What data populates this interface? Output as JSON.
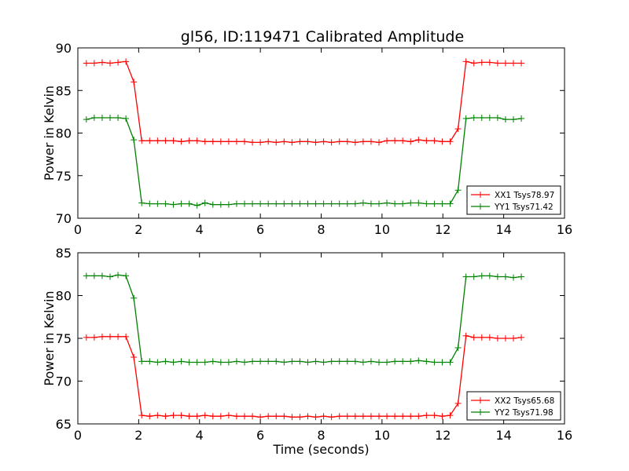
{
  "figure_title": "gl56, ID:119471 Calibrated Amplitude",
  "chart_data": [
    {
      "type": "line",
      "title": "gl56, ID:119471 Calibrated Amplitude",
      "xlabel": "",
      "ylabel": "Power in Kelvin",
      "xlim": [
        0,
        16
      ],
      "ylim": [
        70,
        90
      ],
      "xticks": [
        0,
        2,
        4,
        6,
        8,
        10,
        12,
        14,
        16
      ],
      "yticks": [
        70,
        75,
        80,
        85,
        90
      ],
      "grid": false,
      "legend_position": "bottom-right",
      "x": [
        0.28,
        0.54,
        0.8,
        1.06,
        1.32,
        1.58,
        1.84,
        2.1,
        2.36,
        2.62,
        2.88,
        3.14,
        3.4,
        3.66,
        3.92,
        4.18,
        4.44,
        4.7,
        4.96,
        5.22,
        5.48,
        5.74,
        6.0,
        6.26,
        6.52,
        6.78,
        7.04,
        7.3,
        7.56,
        7.82,
        8.08,
        8.34,
        8.6,
        8.86,
        9.12,
        9.38,
        9.64,
        9.9,
        10.16,
        10.42,
        10.68,
        10.94,
        11.2,
        11.46,
        11.72,
        11.98,
        12.24,
        12.5,
        12.76,
        13.02,
        13.28,
        13.54,
        13.8,
        14.06,
        14.32,
        14.58
      ],
      "series": [
        {
          "name": "XX1 Tsys78.97",
          "color": "#ff0000",
          "values": [
            88.2,
            88.2,
            88.3,
            88.2,
            88.3,
            88.4,
            86.0,
            79.1,
            79.1,
            79.1,
            79.1,
            79.1,
            79.0,
            79.1,
            79.1,
            79.0,
            79.0,
            79.0,
            79.0,
            79.0,
            79.0,
            78.9,
            78.9,
            79.0,
            78.9,
            79.0,
            78.9,
            79.0,
            79.0,
            78.9,
            79.0,
            78.9,
            79.0,
            79.0,
            78.9,
            79.0,
            79.0,
            78.9,
            79.1,
            79.1,
            79.1,
            79.0,
            79.2,
            79.1,
            79.1,
            79.0,
            79.0,
            80.5,
            88.4,
            88.2,
            88.3,
            88.3,
            88.2,
            88.2,
            88.2,
            88.2
          ]
        },
        {
          "name": "YY1 Tsys71.42",
          "color": "#008000",
          "values": [
            81.6,
            81.8,
            81.8,
            81.8,
            81.8,
            81.7,
            79.2,
            71.8,
            71.7,
            71.7,
            71.7,
            71.6,
            71.7,
            71.7,
            71.5,
            71.8,
            71.6,
            71.6,
            71.6,
            71.7,
            71.7,
            71.7,
            71.7,
            71.7,
            71.7,
            71.7,
            71.7,
            71.7,
            71.7,
            71.7,
            71.7,
            71.7,
            71.7,
            71.7,
            71.7,
            71.8,
            71.7,
            71.7,
            71.8,
            71.7,
            71.7,
            71.8,
            71.8,
            71.7,
            71.7,
            71.7,
            71.7,
            73.3,
            81.7,
            81.8,
            81.8,
            81.8,
            81.8,
            81.6,
            81.6,
            81.7
          ]
        }
      ]
    },
    {
      "type": "line",
      "title": "",
      "xlabel": "Time (seconds)",
      "ylabel": "Power in Kelvin",
      "xlim": [
        0,
        16
      ],
      "ylim": [
        65,
        85
      ],
      "xticks": [
        0,
        2,
        4,
        6,
        8,
        10,
        12,
        14,
        16
      ],
      "yticks": [
        65,
        70,
        75,
        80,
        85
      ],
      "grid": false,
      "legend_position": "bottom-right",
      "x": [
        0.28,
        0.54,
        0.8,
        1.06,
        1.32,
        1.58,
        1.84,
        2.1,
        2.36,
        2.62,
        2.88,
        3.14,
        3.4,
        3.66,
        3.92,
        4.18,
        4.44,
        4.7,
        4.96,
        5.22,
        5.48,
        5.74,
        6.0,
        6.26,
        6.52,
        6.78,
        7.04,
        7.3,
        7.56,
        7.82,
        8.08,
        8.34,
        8.6,
        8.86,
        9.12,
        9.38,
        9.64,
        9.9,
        10.16,
        10.42,
        10.68,
        10.94,
        11.2,
        11.46,
        11.72,
        11.98,
        12.24,
        12.5,
        12.76,
        13.02,
        13.28,
        13.54,
        13.8,
        14.06,
        14.32,
        14.58
      ],
      "series": [
        {
          "name": "XX2 Tsys65.68",
          "color": "#ff0000",
          "values": [
            75.1,
            75.1,
            75.2,
            75.2,
            75.2,
            75.2,
            72.8,
            66.0,
            65.9,
            66.0,
            65.9,
            66.0,
            66.0,
            65.9,
            65.9,
            66.0,
            65.9,
            65.9,
            66.0,
            65.9,
            65.9,
            65.9,
            65.8,
            65.9,
            65.9,
            65.9,
            65.8,
            65.8,
            65.9,
            65.8,
            65.9,
            65.8,
            65.9,
            65.9,
            65.9,
            65.9,
            65.9,
            65.9,
            65.9,
            65.9,
            65.9,
            65.9,
            65.9,
            66.0,
            66.0,
            65.9,
            66.0,
            67.4,
            75.3,
            75.1,
            75.1,
            75.1,
            75.0,
            75.0,
            75.0,
            75.1
          ]
        },
        {
          "name": "YY2 Tsys71.98",
          "color": "#008000",
          "values": [
            82.3,
            82.3,
            82.3,
            82.2,
            82.4,
            82.3,
            79.7,
            72.3,
            72.3,
            72.2,
            72.3,
            72.2,
            72.3,
            72.2,
            72.2,
            72.2,
            72.3,
            72.2,
            72.2,
            72.3,
            72.2,
            72.3,
            72.3,
            72.3,
            72.3,
            72.2,
            72.3,
            72.3,
            72.2,
            72.3,
            72.2,
            72.3,
            72.3,
            72.3,
            72.3,
            72.2,
            72.3,
            72.2,
            72.2,
            72.3,
            72.3,
            72.3,
            72.4,
            72.3,
            72.2,
            72.2,
            72.2,
            73.9,
            82.2,
            82.2,
            82.3,
            82.3,
            82.2,
            82.2,
            82.1,
            82.2
          ]
        }
      ]
    }
  ]
}
